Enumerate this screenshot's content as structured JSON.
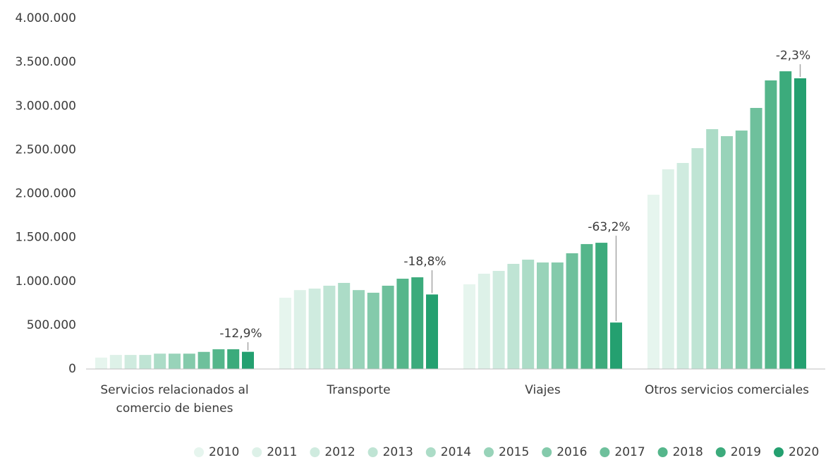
{
  "chart_data": {
    "type": "bar",
    "categories": [
      "Servicios relacionados al\ncomercio de bienes",
      "Transporte",
      "Viajes",
      "Otros servicios comerciales"
    ],
    "series": [
      {
        "name": "2010",
        "color": "#e6f5ee",
        "values": [
          130000,
          813000,
          966000,
          1988000
        ]
      },
      {
        "name": "2011",
        "color": "#ddf1e8",
        "values": [
          160000,
          900000,
          1087000,
          2278000
        ]
      },
      {
        "name": "2012",
        "color": "#cfebdf",
        "values": [
          160000,
          917000,
          1119000,
          2350000
        ]
      },
      {
        "name": "2013",
        "color": "#bfe4d4",
        "values": [
          160000,
          950000,
          1199000,
          2519000
        ]
      },
      {
        "name": "2014",
        "color": "#acdcc7",
        "values": [
          175000,
          982000,
          1247000,
          2736000
        ]
      },
      {
        "name": "2015",
        "color": "#98d3b9",
        "values": [
          175000,
          900000,
          1215000,
          2656000
        ]
      },
      {
        "name": "2016",
        "color": "#84caab",
        "values": [
          175000,
          870000,
          1215000,
          2720000
        ]
      },
      {
        "name": "2017",
        "color": "#6ec09c",
        "values": [
          195000,
          950000,
          1320000,
          2978000
        ]
      },
      {
        "name": "2018",
        "color": "#55b68b",
        "values": [
          225000,
          1030000,
          1425000,
          3292000
        ]
      },
      {
        "name": "2019",
        "color": "#3cab7c",
        "values": [
          225000,
          1046000,
          1440000,
          3396000
        ]
      },
      {
        "name": "2020",
        "color": "#24a070",
        "values": [
          196000,
          850000,
          530000,
          3316000
        ]
      }
    ],
    "annotations": [
      {
        "category": 0,
        "text": "-12,9%"
      },
      {
        "category": 1,
        "text": "-18,8%"
      },
      {
        "category": 2,
        "text": "-63,2%"
      },
      {
        "category": 3,
        "text": "-2,3%"
      }
    ],
    "ylim": [
      0,
      4000000
    ],
    "yticks": [
      0,
      {
        "value": 500000,
        "label": "500.000"
      },
      {
        "value": 1000000,
        "label": "1.000.000"
      },
      {
        "value": 1500000,
        "label": "1.500.000"
      },
      {
        "value": 2000000,
        "label": "2.000.000"
      },
      {
        "value": 2500000,
        "label": "2.500.000"
      },
      {
        "value": 3000000,
        "label": "3.000.000"
      },
      {
        "value": 3500000,
        "label": "3.500.000"
      },
      {
        "value": 4000000,
        "label": "4.000.000"
      }
    ],
    "grid": false,
    "legend": "bottom"
  }
}
